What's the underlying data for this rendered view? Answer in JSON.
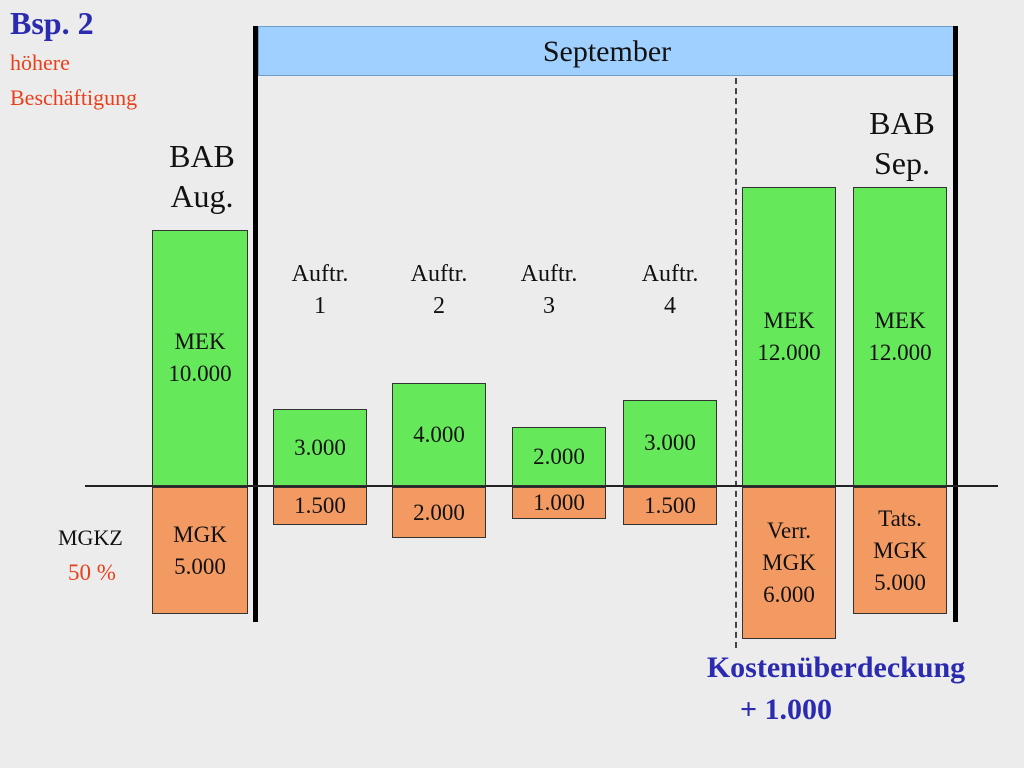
{
  "title": "Bsp. 2",
  "subtitle_line1": "höhere",
  "subtitle_line2": "Beschäftigung",
  "month": "September",
  "bab_aug": {
    "line1": "BAB",
    "line2": "Aug."
  },
  "bab_sep": {
    "line1": "BAB",
    "line2": "Sep."
  },
  "auftraege": [
    {
      "line1": "Auftr.",
      "line2": "1",
      "mek": "3.000",
      "mgk": "1.500"
    },
    {
      "line1": "Auftr.",
      "line2": "2",
      "mek": "4.000",
      "mgk": "2.000"
    },
    {
      "line1": "Auftr.",
      "line2": "3",
      "mek": "2.000",
      "mgk": "1.000"
    },
    {
      "line1": "Auftr.",
      "line2": "4",
      "mek": "3.000",
      "mgk": "1.500"
    }
  ],
  "aug_mek": {
    "line1": "MEK",
    "line2": "10.000"
  },
  "aug_mgk": {
    "line1": "MGK",
    "line2": "5.000"
  },
  "verr_mek": {
    "line1": "MEK",
    "line2": "12.000"
  },
  "verr_mgk": {
    "line1": "Verr.",
    "line2": "MGK",
    "line3": "6.000"
  },
  "tats_mek": {
    "line1": "MEK",
    "line2": "12.000"
  },
  "tats_mgk": {
    "line1": "Tats.",
    "line2": "MGK",
    "line3": "5.000"
  },
  "mgkz_label": "MGKZ",
  "mgkz_value": "50 %",
  "result_line1": "Kostenüberdeckung",
  "result_line2": "+ 1.000",
  "colors": {
    "mek": "#66e85b",
    "mgk": "#f39a62",
    "band": "#9fd0ff",
    "title": "#2b2bb0",
    "accent": "#e8401c"
  }
}
